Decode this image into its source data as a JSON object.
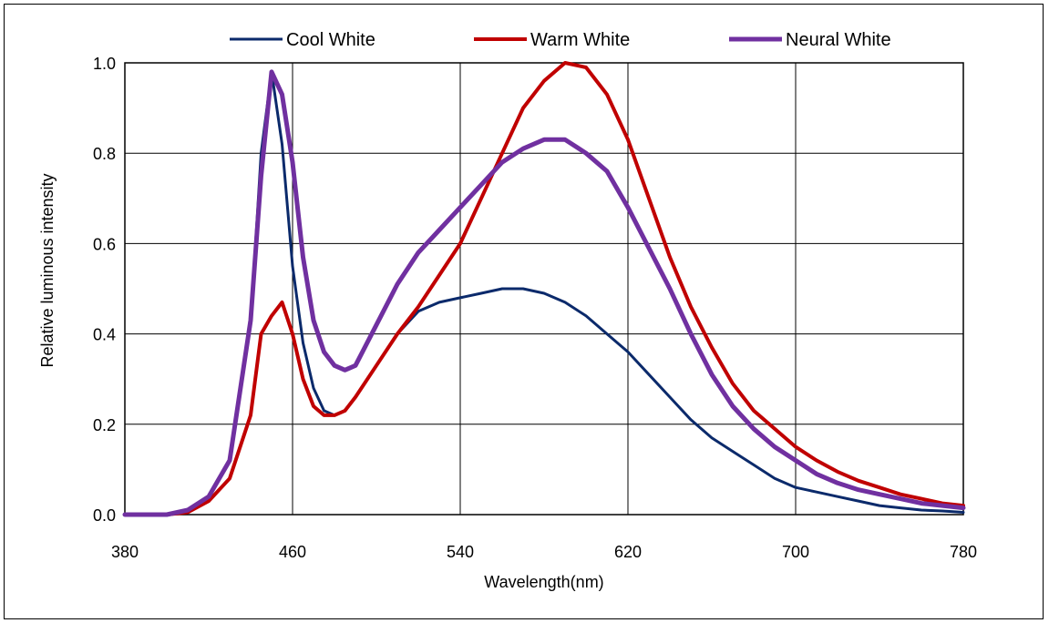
{
  "chart_data": {
    "type": "line",
    "title": "",
    "xlabel": "Wavelength(nm)",
    "ylabel": "Relative luminous intensity",
    "xlim": [
      380,
      780
    ],
    "ylim": [
      0,
      1.0
    ],
    "x_ticks": [
      "380",
      "460",
      "540",
      "620",
      "700",
      "780"
    ],
    "y_ticks": [
      "0.0",
      "0.2",
      "0.4",
      "0.6",
      "0.8",
      "1.0"
    ],
    "grid": true,
    "legend_position": "top",
    "x": [
      380,
      400,
      410,
      420,
      430,
      440,
      445,
      450,
      455,
      460,
      465,
      470,
      475,
      480,
      485,
      490,
      500,
      510,
      520,
      530,
      540,
      550,
      560,
      570,
      580,
      590,
      600,
      610,
      620,
      630,
      640,
      650,
      660,
      670,
      680,
      690,
      700,
      710,
      720,
      730,
      740,
      750,
      760,
      770,
      780
    ],
    "series": [
      {
        "name": "Cool White",
        "color": "#0b2a6b",
        "values": [
          0,
          0,
          0.01,
          0.04,
          0.12,
          0.42,
          0.8,
          0.98,
          0.82,
          0.55,
          0.38,
          0.28,
          0.23,
          0.22,
          0.23,
          0.26,
          0.33,
          0.4,
          0.45,
          0.47,
          0.48,
          0.49,
          0.5,
          0.5,
          0.49,
          0.47,
          0.44,
          0.4,
          0.36,
          0.31,
          0.26,
          0.21,
          0.17,
          0.14,
          0.11,
          0.08,
          0.06,
          0.05,
          0.04,
          0.03,
          0.02,
          0.015,
          0.01,
          0.008,
          0.005
        ]
      },
      {
        "name": "Warm White",
        "color": "#c00000",
        "values": [
          0,
          0,
          0.005,
          0.03,
          0.08,
          0.22,
          0.4,
          0.44,
          0.47,
          0.4,
          0.3,
          0.24,
          0.22,
          0.22,
          0.23,
          0.26,
          0.33,
          0.4,
          0.46,
          0.53,
          0.6,
          0.7,
          0.8,
          0.9,
          0.96,
          1.0,
          0.99,
          0.93,
          0.83,
          0.7,
          0.57,
          0.46,
          0.37,
          0.29,
          0.23,
          0.19,
          0.15,
          0.12,
          0.095,
          0.075,
          0.06,
          0.045,
          0.035,
          0.025,
          0.02
        ]
      },
      {
        "name": "Neural White",
        "color": "#7030a0",
        "values": [
          0,
          0,
          0.01,
          0.04,
          0.12,
          0.43,
          0.75,
          0.98,
          0.93,
          0.78,
          0.57,
          0.43,
          0.36,
          0.33,
          0.32,
          0.33,
          0.42,
          0.51,
          0.58,
          0.63,
          0.68,
          0.73,
          0.78,
          0.81,
          0.83,
          0.83,
          0.8,
          0.76,
          0.68,
          0.59,
          0.5,
          0.4,
          0.31,
          0.24,
          0.19,
          0.15,
          0.12,
          0.09,
          0.07,
          0.055,
          0.045,
          0.035,
          0.025,
          0.02,
          0.015
        ]
      }
    ]
  }
}
